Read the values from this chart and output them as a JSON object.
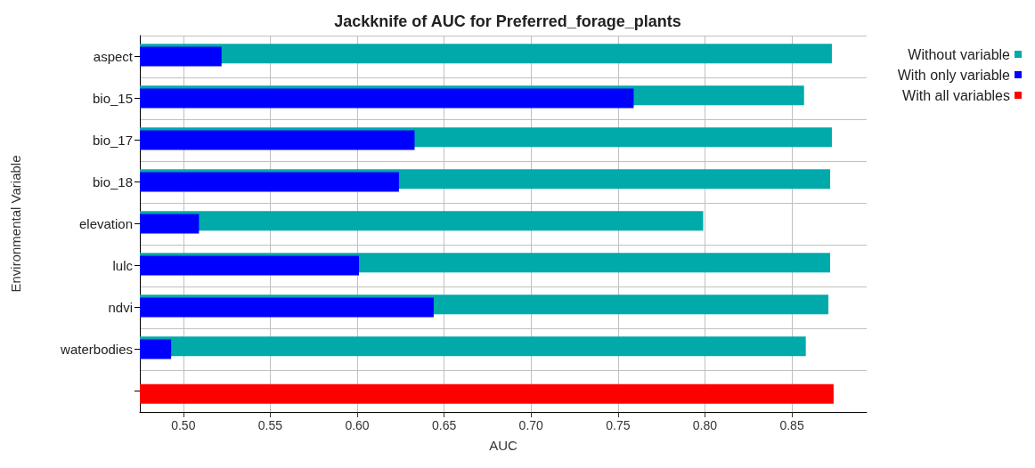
{
  "chart_data": {
    "type": "bar",
    "orientation": "horizontal",
    "title": "Jackknife of AUC for Preferred_forage_plants",
    "xlabel": "AUC",
    "ylabel": "Environmental Variable",
    "categories": [
      "aspect",
      "bio_15",
      "bio_17",
      "bio_18",
      "elevation",
      "lulc",
      "ndvi",
      "waterbodies",
      null
    ],
    "series": [
      {
        "name": "Without variable",
        "color": "#00aaaa",
        "values": [
          0.873,
          0.857,
          0.873,
          0.872,
          0.799,
          0.872,
          0.871,
          0.858,
          null
        ]
      },
      {
        "name": "With only variable",
        "color": "#0000ff",
        "values": [
          0.522,
          0.759,
          0.633,
          0.624,
          0.509,
          0.601,
          0.644,
          0.493,
          null
        ]
      },
      {
        "name": "With all variables",
        "color": "#ff0000",
        "values": [
          null,
          null,
          null,
          null,
          null,
          null,
          null,
          null,
          0.874
        ]
      }
    ],
    "xlim": [
      0.475,
      0.893
    ],
    "xticks": [
      {
        "value": 0.5,
        "label": "0.50"
      },
      {
        "value": 0.55,
        "label": "0.55"
      },
      {
        "value": 0.6,
        "label": "0.60"
      },
      {
        "value": 0.65,
        "label": "0.65"
      },
      {
        "value": 0.7,
        "label": "0.70"
      },
      {
        "value": 0.75,
        "label": "0.75"
      },
      {
        "value": 0.8,
        "label": "0.80"
      },
      {
        "value": 0.85,
        "label": "0.85"
      }
    ],
    "grid": true,
    "legend": "right"
  }
}
